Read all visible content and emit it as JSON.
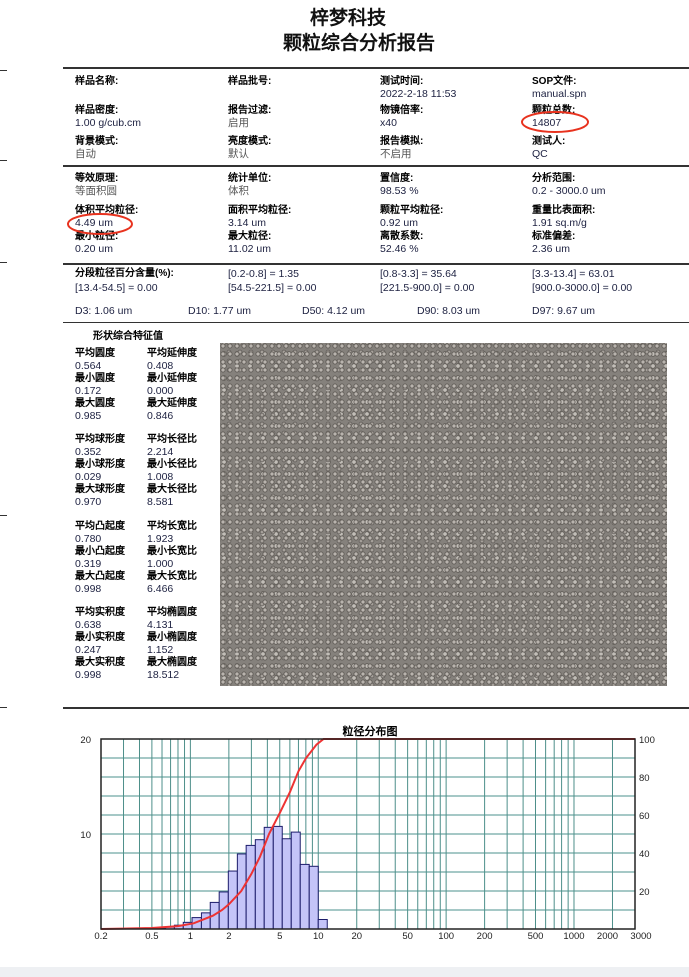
{
  "header": {
    "company": "梓梦科技",
    "report_title": "颗粒综合分析报告"
  },
  "info": [
    {
      "label": "样品名称:",
      "value": ""
    },
    {
      "label": "样品批号:",
      "value": ""
    },
    {
      "label": "测试时间:",
      "value": "2022-2-18 11:53"
    },
    {
      "label": "SOP文件:",
      "value": "manual.spn"
    },
    {
      "label": "样品密度:",
      "value": "1.00 g/cub.cm"
    },
    {
      "label": "报告过滤:",
      "value": "启用"
    },
    {
      "label": "物镜倍率:",
      "value": "x40"
    },
    {
      "label": "颗粒总数:",
      "value": "14807"
    },
    {
      "label": "背景模式:",
      "value": "自动"
    },
    {
      "label": "亮度模式:",
      "value": "默认"
    },
    {
      "label": "报告模拟:",
      "value": "不启用"
    },
    {
      "label": "测试人:",
      "value": "QC"
    }
  ],
  "stats": [
    {
      "label": "等效原理:",
      "value": "等面积圆"
    },
    {
      "label": "统计单位:",
      "value": "体积"
    },
    {
      "label": "置信度:",
      "value": "98.53 %"
    },
    {
      "label": "分析范围:",
      "value": "0.2 - 3000.0 um"
    },
    {
      "label": "体积平均粒径:",
      "value": "4.49  um"
    },
    {
      "label": "面积平均粒径:",
      "value": "3.14  um"
    },
    {
      "label": "颗粒平均粒径:",
      "value": "0.92  um"
    },
    {
      "label": "重量比表面积:",
      "value": "1.91  sq.m/g"
    },
    {
      "label": "最小粒径:",
      "value": "0.20  um"
    },
    {
      "label": "最大粒径:",
      "value": "11.02  um"
    },
    {
      "label": "离散系数:",
      "value": "52.46 %"
    },
    {
      "label": "标准偏差:",
      "value": "2.36  um"
    }
  ],
  "segments": {
    "label": "分段粒径百分含量(%):",
    "items": [
      "[0.2-0.8] = 1.35",
      "[0.8-3.3] = 35.64",
      "[3.3-13.4] = 63.01",
      "[13.4-54.5] = 0.00",
      "[54.5-221.5] = 0.00",
      "[221.5-900.0] = 0.00",
      "[900.0-3000.0] = 0.00"
    ]
  },
  "d_values": [
    "D3: 1.06  um",
    "D10: 1.77  um",
    "D50: 4.12  um",
    "D90: 8.03  um",
    "D97: 9.67  um"
  ],
  "shape": {
    "title": "形状综合特征值",
    "groups": [
      [
        [
          "平均圆度",
          "0.564",
          "平均延伸度",
          "0.408"
        ],
        [
          "最小圆度",
          "0.172",
          "最小延伸度",
          "0.000"
        ],
        [
          "最大圆度",
          "0.985",
          "最大延伸度",
          "0.846"
        ]
      ],
      [
        [
          "平均球形度",
          "0.352",
          "平均长径比",
          "2.214"
        ],
        [
          "最小球形度",
          "0.029",
          "最小长径比",
          "1.008"
        ],
        [
          "最大球形度",
          "0.970",
          "最大长径比",
          "8.581"
        ]
      ],
      [
        [
          "平均凸起度",
          "0.780",
          "平均长宽比",
          "1.923"
        ],
        [
          "最小凸起度",
          "0.319",
          "最小长宽比",
          "1.000"
        ],
        [
          "最大凸起度",
          "0.998",
          "最大长宽比",
          "6.466"
        ]
      ],
      [
        [
          "平均实积度",
          "0.638",
          "平均椭圆度",
          "4.131"
        ],
        [
          "最小实积度",
          "0.247",
          "最小椭圆度",
          "1.152"
        ],
        [
          "最大实积度",
          "0.998",
          "最大椭圆度",
          "18.512"
        ]
      ]
    ]
  },
  "highlight_color": "#e8321e",
  "chart_data": {
    "type": "bar",
    "title": "粒径分布图",
    "x_scale": "log",
    "xlim": [
      0.2,
      3000
    ],
    "x_ticks": [
      "0.2",
      "0.5",
      "1",
      "2",
      "5",
      "10",
      "20",
      "50",
      "100",
      "200",
      "500",
      "1000",
      "2000",
      "3000"
    ],
    "y_left_lim": [
      0,
      20
    ],
    "y_left_ticks": [
      "10",
      "20"
    ],
    "y_right_lim": [
      0,
      100
    ],
    "y_right_ticks": [
      "20",
      "40",
      "60",
      "80",
      "100"
    ],
    "grid": true,
    "bar_color": "#c4c4f8",
    "bar_edge": "#1c1c6a",
    "curve_color": "#ee3333",
    "bins": [
      {
        "from": 0.46,
        "to": 0.54,
        "value": 0.05
      },
      {
        "from": 0.54,
        "to": 0.64,
        "value": 0.1
      },
      {
        "from": 0.64,
        "to": 0.75,
        "value": 0.2
      },
      {
        "from": 0.75,
        "to": 0.88,
        "value": 0.4
      },
      {
        "from": 0.88,
        "to": 1.03,
        "value": 0.7
      },
      {
        "from": 1.03,
        "to": 1.22,
        "value": 1.2
      },
      {
        "from": 1.22,
        "to": 1.43,
        "value": 1.7
      },
      {
        "from": 1.43,
        "to": 1.68,
        "value": 2.8
      },
      {
        "from": 1.68,
        "to": 1.98,
        "value": 3.9
      },
      {
        "from": 1.98,
        "to": 2.33,
        "value": 6.1
      },
      {
        "from": 2.33,
        "to": 2.73,
        "value": 7.9
      },
      {
        "from": 2.73,
        "to": 3.22,
        "value": 8.8
      },
      {
        "from": 3.22,
        "to": 3.78,
        "value": 9.4
      },
      {
        "from": 3.78,
        "to": 4.45,
        "value": 10.7
      },
      {
        "from": 4.45,
        "to": 5.23,
        "value": 10.8
      },
      {
        "from": 5.23,
        "to": 6.15,
        "value": 9.5
      },
      {
        "from": 6.15,
        "to": 7.23,
        "value": 10.2
      },
      {
        "from": 7.23,
        "to": 8.5,
        "value": 6.8
      },
      {
        "from": 8.5,
        "to": 10.0,
        "value": 6.6
      },
      {
        "from": 10.0,
        "to": 11.76,
        "value": 1.0
      }
    ],
    "cumulative": [
      [
        0.2,
        0
      ],
      [
        0.5,
        0.5
      ],
      [
        0.8,
        1.5
      ],
      [
        1.06,
        3
      ],
      [
        1.5,
        7
      ],
      [
        1.77,
        10
      ],
      [
        2,
        13
      ],
      [
        2.5,
        20
      ],
      [
        3,
        29
      ],
      [
        3.5,
        38
      ],
      [
        4.12,
        50
      ],
      [
        5,
        61
      ],
      [
        6,
        72
      ],
      [
        7,
        83
      ],
      [
        8.03,
        90
      ],
      [
        9.67,
        97
      ],
      [
        11,
        100
      ],
      [
        3000,
        100
      ]
    ]
  }
}
